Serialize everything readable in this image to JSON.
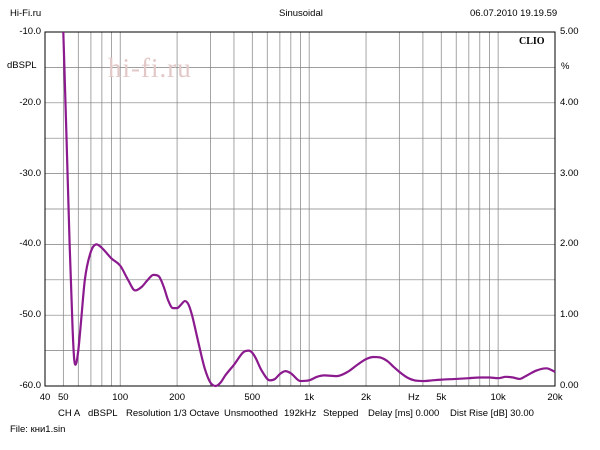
{
  "header": {
    "left": "Hi-Fi.ru",
    "center": "Sinusoidal",
    "right": "06.07.2010 19.19.59"
  },
  "watermark": "hi-fi.ru",
  "brand": "CLIO",
  "footer": {
    "ch": "CH A",
    "unit": "dBSPL",
    "resolution": "Resolution 1/3 Octave",
    "smoothing": "Unsmoothed",
    "rate": "192kHz",
    "mode": "Stepped",
    "delay": "Delay [ms] 0.000",
    "dist_rise": "Dist Rise [dB] 30.00",
    "file": "File: кни1.sin"
  },
  "colors": {
    "curve": "#8B1A8E",
    "grid": "#7f7f7f",
    "frame": "#000000"
  },
  "chart_data": {
    "type": "line",
    "x_scale": "log",
    "xlim": [
      40,
      20000
    ],
    "x_ticks": [
      {
        "v": 40,
        "label": "40"
      },
      {
        "v": 50,
        "label": "50"
      },
      {
        "v": 100,
        "label": "100"
      },
      {
        "v": 200,
        "label": "200"
      },
      {
        "v": 500,
        "label": "500"
      },
      {
        "v": 1000,
        "label": "1k"
      },
      {
        "v": 2000,
        "label": "2k"
      },
      {
        "v": 5000,
        "label": "5k"
      },
      {
        "v": 10000,
        "label": "10k"
      },
      {
        "v": 20000,
        "label": "20k"
      }
    ],
    "x_unit": "Hz",
    "ylim_left": [
      -60,
      -10
    ],
    "yticks_left": [
      "-10.0",
      "-20.0",
      "-30.0",
      "-40.0",
      "-50.0",
      "-60.0"
    ],
    "ylabel_left": "dBSPL",
    "ylim_right": [
      0,
      5
    ],
    "yticks_right": [
      "5.00",
      "4.00",
      "3.00",
      "2.00",
      "1.00",
      "0.00"
    ],
    "ylabel_right": "%",
    "grid": true,
    "series": [
      {
        "x": [
          50,
          52,
          54,
          56,
          57,
          58,
          60,
          62,
          65,
          70,
          75,
          80,
          90,
          100,
          110,
          120,
          130,
          140,
          150,
          160,
          170,
          180,
          190,
          200,
          210,
          220,
          230,
          240,
          250,
          260,
          280,
          300,
          320,
          340,
          360,
          400,
          450,
          480,
          500,
          520,
          560,
          620,
          660,
          700,
          750,
          800,
          900,
          1000,
          1100,
          1200,
          1400,
          1600,
          1800,
          2000,
          2200,
          2400,
          2600,
          2800,
          3000,
          3300,
          3600,
          4000,
          4500,
          5000,
          6000,
          7000,
          8000,
          9000,
          10000,
          11000,
          12000,
          13000,
          14000,
          16000,
          18000,
          20000
        ],
        "y": [
          -10.0,
          -25.0,
          -40.0,
          -52.0,
          -56.0,
          -57.0,
          -55.0,
          -51.0,
          -45.0,
          -41.0,
          -40.0,
          -40.5,
          -42.0,
          -43.0,
          -45.0,
          -46.5,
          -46.0,
          -45.0,
          -44.3,
          -44.5,
          -46.0,
          -48.0,
          -49.0,
          -49.0,
          -48.5,
          -48.0,
          -48.5,
          -50.0,
          -52.0,
          -54.0,
          -57.5,
          -59.5,
          -60.0,
          -59.5,
          -58.5,
          -57.0,
          -55.2,
          -55.0,
          -55.3,
          -56.0,
          -57.8,
          -59.2,
          -59.0,
          -58.3,
          -57.9,
          -58.2,
          -59.3,
          -59.2,
          -58.7,
          -58.5,
          -58.6,
          -58.0,
          -57.0,
          -56.2,
          -55.9,
          -56.0,
          -56.5,
          -57.3,
          -58.0,
          -58.8,
          -59.2,
          -59.3,
          -59.2,
          -59.1,
          -59.0,
          -58.9,
          -58.8,
          -58.8,
          -58.9,
          -58.7,
          -58.8,
          -59.0,
          -58.6,
          -57.8,
          -57.5,
          -58.0
        ]
      }
    ]
  }
}
